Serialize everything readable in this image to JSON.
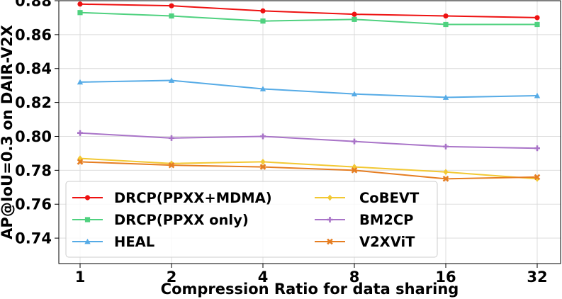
{
  "chart_data": {
    "type": "line",
    "title": "",
    "xlabel": "Compression Ratio for data sharing",
    "ylabel": "AP@IoU=0.3 on DAIR-V2X",
    "categories": [
      "1",
      "2",
      "4",
      "8",
      "16",
      "32"
    ],
    "ylim": [
      0.725,
      0.88
    ],
    "yticks": [
      "0.74",
      "0.76",
      "0.78",
      "0.80",
      "0.82",
      "0.84",
      "0.86",
      "0.88"
    ],
    "ytick_values": [
      0.74,
      0.76,
      0.78,
      0.8,
      0.82,
      0.84,
      0.86,
      0.88
    ],
    "grid": true,
    "legend_position": "lower-left",
    "series": [
      {
        "name": "DRCP(PPXX+MDMA)",
        "color": "#ee1111",
        "marker": "circle",
        "values": [
          0.878,
          0.877,
          0.874,
          0.872,
          0.871,
          0.87
        ]
      },
      {
        "name": "DRCP(PPXX only)",
        "color": "#4fd17f",
        "marker": "square",
        "values": [
          0.873,
          0.871,
          0.868,
          0.869,
          0.866,
          0.866
        ]
      },
      {
        "name": "HEAL",
        "color": "#56abe6",
        "marker": "triangle",
        "values": [
          0.832,
          0.833,
          0.828,
          0.825,
          0.823,
          0.824
        ]
      },
      {
        "name": "CoBEVT",
        "color": "#f2c833",
        "marker": "diamond",
        "values": [
          0.787,
          0.784,
          0.785,
          0.782,
          0.779,
          0.775
        ]
      },
      {
        "name": "BM2CP",
        "color": "#a974c8",
        "marker": "plus",
        "values": [
          0.802,
          0.799,
          0.8,
          0.797,
          0.794,
          0.793
        ]
      },
      {
        "name": "V2XViT",
        "color": "#e67e22",
        "marker": "x",
        "values": [
          0.785,
          0.783,
          0.782,
          0.78,
          0.775,
          0.776
        ]
      }
    ]
  }
}
